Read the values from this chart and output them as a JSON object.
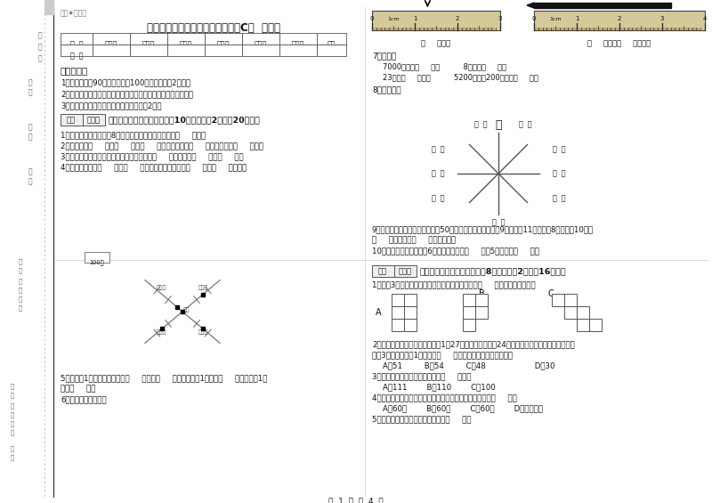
{
  "title": "苏教版三年级数学下学期月考试卷C卷  附解析",
  "watermark": "微微★自用图",
  "table_headers": [
    "题  号",
    "填空题",
    "选择题",
    "判断题",
    "计算题",
    "综合题",
    "应用题",
    "总分"
  ],
  "table_row": [
    "得  分",
    "",
    "",
    "",
    "",
    "",
    "",
    ""
  ],
  "notice_title": "考试须知：",
  "notice_items": [
    "1．考试时间：90分钟，满分为100分（含卷面分2分）。",
    "2．请首先按要求在试卷的指定位置填写您的姓名、班级、学号。",
    "3．不要在试卷上乱写乱画，卷面不整洁扣2分。"
  ],
  "score_box_label": "得分",
  "score_box_label2": "评卷人",
  "section1_title": "一、用心思考，正确填空（共10小题，每题2分，共20分）。",
  "q1": "1．小明从一楼到三楼用8秒，照这样他从一楼到五楼用（     ）秒。",
  "q2": "2．你出生于（     ）年（     ）月（     ）日，那一年是（     ）年，全年有（     ）天。",
  "q3": "3．在进位加法中，不管哪一位上的数相加满（     ），都要向（     ）进（     ）。",
  "q4": "4．小红家在学校（     ）方（     ）米处；小明家在学校（     ）方（     ）米处。",
  "map_scale": "100米",
  "map_node_labels": [
    "小红家",
    "小明家",
    "学校",
    "小红家",
    "小明家"
  ],
  "q5_line1": "5．分针走1小格，秒针正好走（     ），是（     ）秒。分针走1大格是（     ），时针走1大",
  "q5_line2": "格是（     ）。",
  "q6": "6．量出钉子的长度。",
  "ruler1_label": "（     ）毫米",
  "ruler2_label": "（     ）厘米（     ）毫米。",
  "q7_title": "7．换算。",
  "q7_a": "7000千克＝（     ）吨          8千克＝（     ）克",
  "q7_b": "23吨＝（     ）千克          5200千克－200千克＝（     ）吨",
  "q8_title": "8．填一填。",
  "compass_north": "北",
  "q9_line1": "9．体育老师对第一小组同学进行50米跑测试，成绩如下小红9秒，小丽11秒，小明8秒，小军10秒。",
  "q9_line2": "（     ）跑得最快（     ）跑得最慢。",
  "q10": "10．把一根绳子平均分成6份，每份是它的（     ），5份是它的（     ）。",
  "section2_score_label": "得分",
  "section2_score_label2": "评卷人",
  "section2_title": "二、反复比较，慎重选择（共8小题，每题2分，共16分）。",
  "s2_q1_intro": "1．下列3个图形中，每个小正方形都一样大，那么（     ）图形的周长最长。",
  "s2_shape_labels": [
    "A",
    "B",
    "C"
  ],
  "s2_q2_line1": "2．学校开设两个兴趣小组，三（1）27人参加书画小组，24人参加棋艺小组，两个小组都参加",
  "s2_q2_line2": "的有3人，那么三（1）一共有（     ）人参加了书画和棋艺小组。",
  "s2_q2_choices": "A．51         B．54         C．48                    D．30",
  "s2_q3": "3．最大的三位数是最大一位数的（     ）倍。",
  "s2_q3_choices": "A．111        B．110        C．100",
  "s2_q4": "4．时钟从上一个数字到相邻的下一个数字，经过的时间是（     ）。",
  "s2_q4_choices": "A．60秒        B．60分        C．60时        D．无法确定",
  "s2_q5": "5．最小三位数和最大三位数的和是（     ）。",
  "page_footer": "第  1  页  共  4  页",
  "bg_color": "#ffffff",
  "divider_color": "#cccccc",
  "margin_line_color": "#aaaaaa"
}
